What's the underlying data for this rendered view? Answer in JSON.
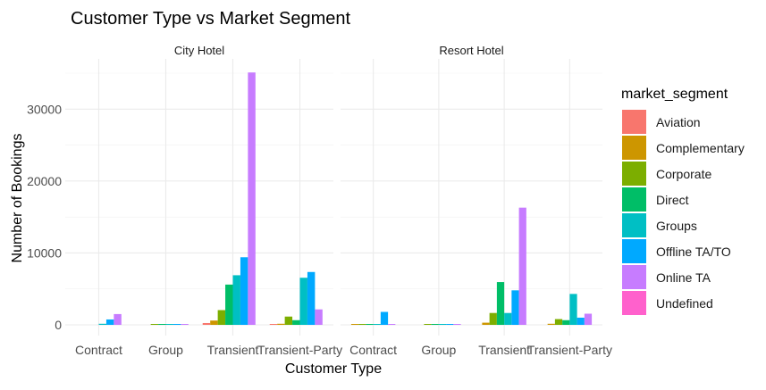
{
  "chart_data": {
    "type": "bar",
    "title": "Customer Type vs Market Segment",
    "xlabel": "Customer Type",
    "ylabel": "Number of Bookings",
    "ylim": [
      0,
      36500
    ],
    "y_ticks": [
      0,
      10000,
      20000,
      30000
    ],
    "y_tick_labels": [
      "0",
      "10000",
      "20000",
      "30000"
    ],
    "grid": true,
    "legend_title": "market_segment",
    "legend_position": "right",
    "categories": [
      "Contract",
      "Group",
      "Transient",
      "Transient-Party"
    ],
    "segments": [
      {
        "name": "Aviation",
        "color": "#F8766D"
      },
      {
        "name": "Complementary",
        "color": "#CD9600"
      },
      {
        "name": "Corporate",
        "color": "#7CAE00"
      },
      {
        "name": "Direct",
        "color": "#00BE67"
      },
      {
        "name": "Groups",
        "color": "#00BFC4"
      },
      {
        "name": "Offline TA/TO",
        "color": "#00A9FF"
      },
      {
        "name": "Online TA",
        "color": "#C77CFF"
      },
      {
        "name": "Undefined",
        "color": "#FF61CC"
      }
    ],
    "panels": [
      {
        "name": "City Hotel",
        "groups": [
          {
            "category": "Contract",
            "bars": [
              {
                "segment": "Groups",
                "value": 150
              },
              {
                "segment": "Offline TA/TO",
                "value": 750
              },
              {
                "segment": "Groups",
                "value": 100
              },
              {
                "segment": "Online TA",
                "value": 1500
              }
            ]
          },
          {
            "category": "Group",
            "bars": [
              {
                "segment": "Corporate",
                "value": 100
              },
              {
                "segment": "Direct",
                "value": 80
              },
              {
                "segment": "Groups",
                "value": 60
              },
              {
                "segment": "Offline TA/TO",
                "value": 100
              },
              {
                "segment": "Online TA",
                "value": 120
              }
            ]
          },
          {
            "category": "Transient",
            "bars": [
              {
                "segment": "Aviation",
                "value": 250
              },
              {
                "segment": "Complementary",
                "value": 600
              },
              {
                "segment": "Corporate",
                "value": 2050
              },
              {
                "segment": "Direct",
                "value": 5600
              },
              {
                "segment": "Groups",
                "value": 6900
              },
              {
                "segment": "Offline TA/TO",
                "value": 9400
              },
              {
                "segment": "Online TA",
                "value": 35100
              }
            ]
          },
          {
            "category": "Transient-Party",
            "bars": [
              {
                "segment": "Aviation",
                "value": 100
              },
              {
                "segment": "Complementary",
                "value": 150
              },
              {
                "segment": "Corporate",
                "value": 1150
              },
              {
                "segment": "Direct",
                "value": 650
              },
              {
                "segment": "Groups",
                "value": 6550
              },
              {
                "segment": "Offline TA/TO",
                "value": 7350
              },
              {
                "segment": "Online TA",
                "value": 2150
              }
            ]
          }
        ]
      },
      {
        "name": "Resort Hotel",
        "groups": [
          {
            "category": "Contract",
            "bars": [
              {
                "segment": "Complementary",
                "value": 60
              },
              {
                "segment": "Corporate",
                "value": 80
              },
              {
                "segment": "Direct",
                "value": 60
              },
              {
                "segment": "Groups",
                "value": 80
              },
              {
                "segment": "Offline TA/TO",
                "value": 1800
              },
              {
                "segment": "Online TA",
                "value": 60
              }
            ]
          },
          {
            "category": "Group",
            "bars": [
              {
                "segment": "Corporate",
                "value": 80
              },
              {
                "segment": "Direct",
                "value": 80
              },
              {
                "segment": "Groups",
                "value": 60
              },
              {
                "segment": "Offline TA/TO",
                "value": 100
              },
              {
                "segment": "Online TA",
                "value": 120
              }
            ]
          },
          {
            "category": "Transient",
            "bars": [
              {
                "segment": "Complementary",
                "value": 300
              },
              {
                "segment": "Corporate",
                "value": 1650
              },
              {
                "segment": "Direct",
                "value": 5950
              },
              {
                "segment": "Groups",
                "value": 1650
              },
              {
                "segment": "Offline TA/TO",
                "value": 4800
              },
              {
                "segment": "Online TA",
                "value": 16300
              }
            ]
          },
          {
            "category": "Transient-Party",
            "bars": [
              {
                "segment": "Complementary",
                "value": 150
              },
              {
                "segment": "Corporate",
                "value": 800
              },
              {
                "segment": "Direct",
                "value": 650
              },
              {
                "segment": "Groups",
                "value": 4300
              },
              {
                "segment": "Offline TA/TO",
                "value": 1000
              },
              {
                "segment": "Online TA",
                "value": 1550
              }
            ]
          }
        ]
      }
    ]
  }
}
